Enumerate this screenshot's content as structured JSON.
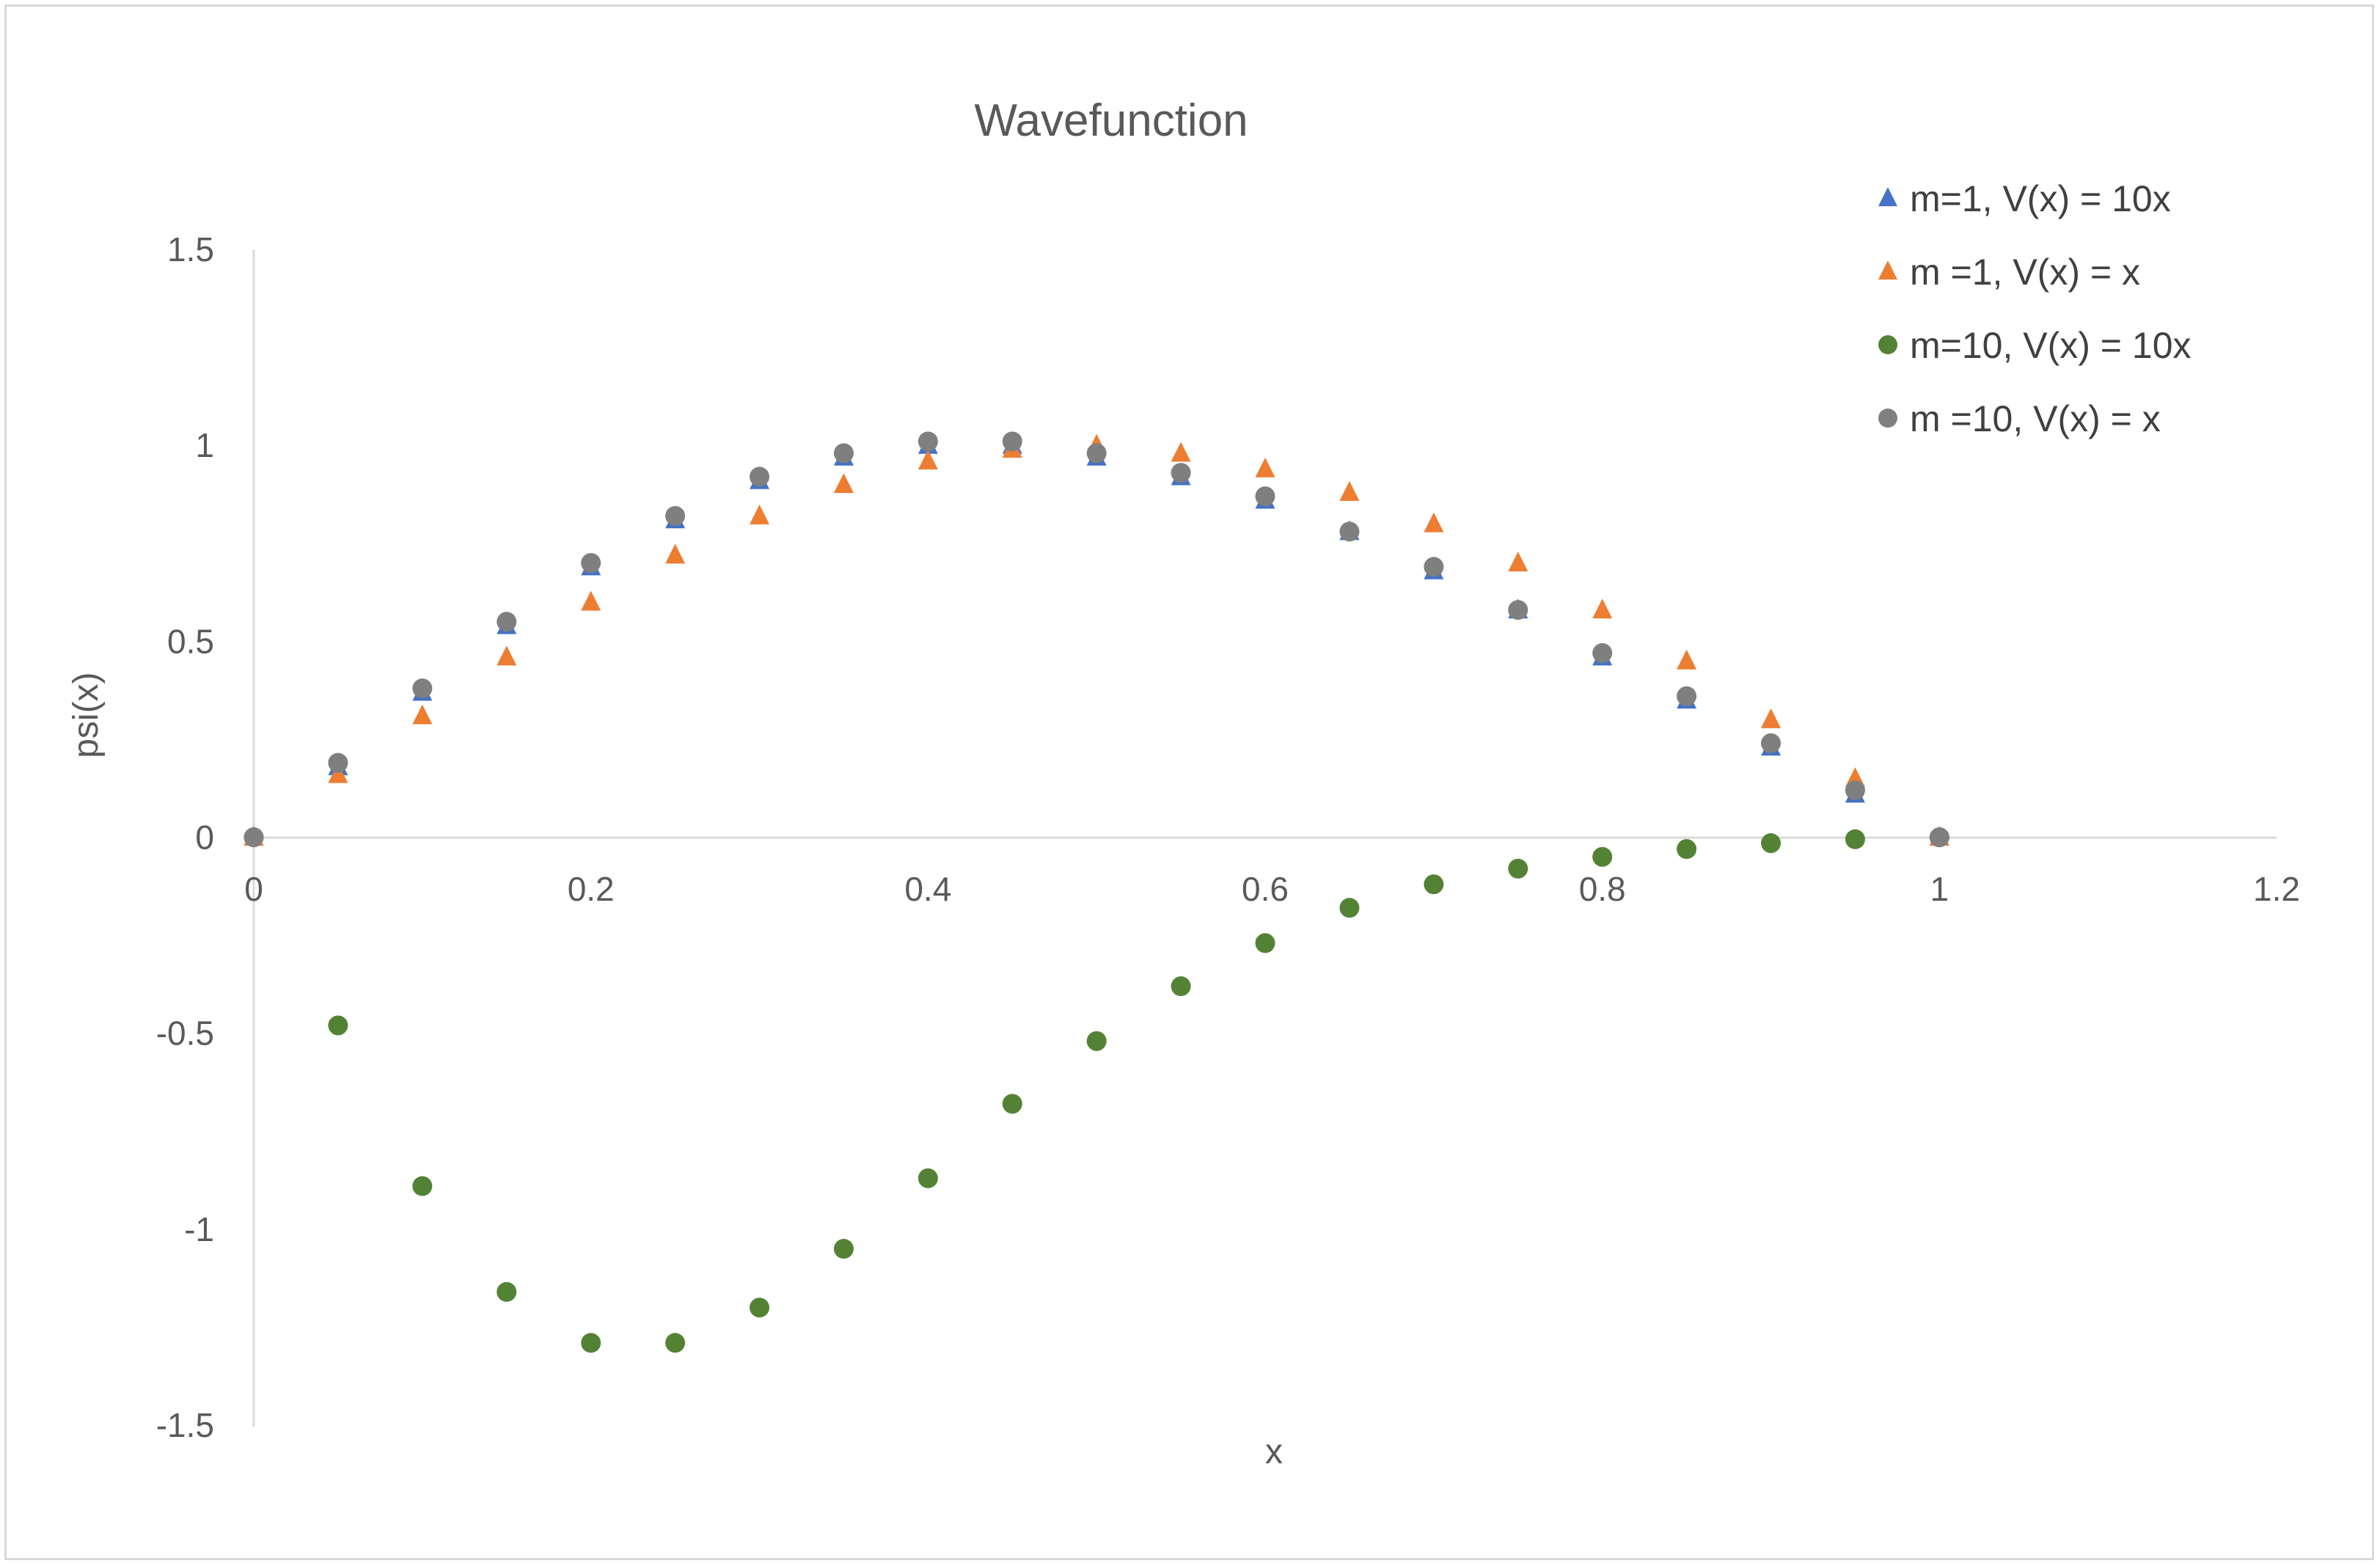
{
  "chart_data": {
    "type": "scatter",
    "title": "Wavefunction",
    "xlabel": "x",
    "ylabel": "psi(x)",
    "xlim": [
      0,
      1.2
    ],
    "ylim": [
      -1.5,
      1.5
    ],
    "x_ticks": [
      "0",
      "0.2",
      "0.4",
      "0.6",
      "0.8",
      "1",
      "1.2"
    ],
    "y_ticks": [
      "1.5",
      "1",
      "0.5",
      "0",
      "-0.5",
      "-1",
      "-1.5"
    ],
    "grid": false,
    "legend_position": "top-right",
    "x": [
      0,
      0.05,
      0.1,
      0.15,
      0.2,
      0.25,
      0.3,
      0.35,
      0.4,
      0.45,
      0.5,
      0.55,
      0.6,
      0.65,
      0.7,
      0.75,
      0.8,
      0.85,
      0.9,
      0.95,
      1.0
    ],
    "series": [
      {
        "name": "m=1, V(x) = 10x",
        "marker": "triangle",
        "color": "#4472c4",
        "values": [
          0,
          0.18,
          0.37,
          0.54,
          0.69,
          0.81,
          0.91,
          0.97,
          1.0,
          1.0,
          0.97,
          0.92,
          0.86,
          0.78,
          0.68,
          0.58,
          0.46,
          0.35,
          0.23,
          0.11,
          0
        ]
      },
      {
        "name": "m =1, V(x) = x",
        "marker": "triangle",
        "color": "#ed7d31",
        "values": [
          0,
          0.16,
          0.31,
          0.46,
          0.6,
          0.72,
          0.82,
          0.9,
          0.96,
          0.99,
          1.0,
          0.98,
          0.94,
          0.88,
          0.8,
          0.7,
          0.58,
          0.45,
          0.3,
          0.15,
          0
        ]
      },
      {
        "name": "m=10, V(x) = 10x",
        "marker": "circle",
        "color": "#548235",
        "values": [
          0,
          -0.48,
          -0.89,
          -1.16,
          -1.29,
          -1.29,
          -1.2,
          -1.05,
          -0.87,
          -0.68,
          -0.52,
          -0.38,
          -0.27,
          -0.18,
          -0.12,
          -0.08,
          -0.05,
          -0.03,
          -0.015,
          -0.005,
          0
        ]
      },
      {
        "name": "m =10, V(x) = x",
        "marker": "circle",
        "color": "#7f7f7f",
        "values": [
          0,
          0.19,
          0.38,
          0.55,
          0.7,
          0.82,
          0.92,
          0.98,
          1.01,
          1.01,
          0.98,
          0.93,
          0.87,
          0.78,
          0.69,
          0.58,
          0.47,
          0.36,
          0.24,
          0.12,
          0
        ]
      }
    ]
  }
}
